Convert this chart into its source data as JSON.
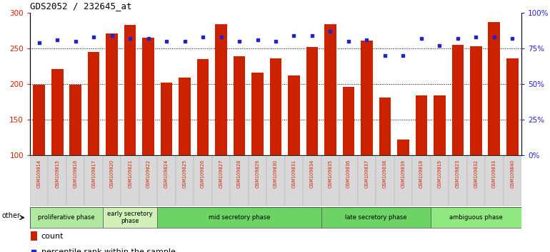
{
  "title": "GDS2052 / 232645_at",
  "samples": [
    "GSM109814",
    "GSM109815",
    "GSM109816",
    "GSM109817",
    "GSM109820",
    "GSM109821",
    "GSM109822",
    "GSM109824",
    "GSM109825",
    "GSM109826",
    "GSM109827",
    "GSM109828",
    "GSM109829",
    "GSM109830",
    "GSM109831",
    "GSM109834",
    "GSM109835",
    "GSM109836",
    "GSM109837",
    "GSM109838",
    "GSM109839",
    "GSM109818",
    "GSM109819",
    "GSM109823",
    "GSM109832",
    "GSM109833",
    "GSM109840"
  ],
  "counts": [
    199,
    221,
    199,
    245,
    271,
    283,
    265,
    202,
    209,
    235,
    284,
    239,
    216,
    236,
    212,
    252,
    284,
    196,
    261,
    181,
    122,
    184,
    184,
    255,
    253,
    287,
    236
  ],
  "percentiles": [
    79,
    81,
    80,
    83,
    84,
    82,
    82,
    80,
    80,
    83,
    83,
    80,
    81,
    80,
    84,
    84,
    87,
    80,
    81,
    70,
    70,
    82,
    77,
    82,
    83,
    83,
    82
  ],
  "bar_color": "#cc2200",
  "dot_color": "#2222cc",
  "y_min": 100,
  "y_max": 300,
  "yticks_left": [
    100,
    150,
    200,
    250,
    300
  ],
  "pct_min": 0,
  "pct_max": 100,
  "yticks_right": [
    0,
    25,
    50,
    75,
    100
  ],
  "phase_groups": [
    {
      "label": "proliferative phase",
      "count": 4,
      "color": "#b0e8a0"
    },
    {
      "label": "early secretory\nphase",
      "count": 3,
      "color": "#d0f0b8"
    },
    {
      "label": "mid secretory phase",
      "count": 9,
      "color": "#6cd464"
    },
    {
      "label": "late secretory phase",
      "count": 6,
      "color": "#6cd464"
    },
    {
      "label": "ambiguous phase",
      "count": 5,
      "color": "#90e880"
    }
  ],
  "other_label": "other",
  "legend_count_label": "count",
  "legend_percentile_label": "percentile rank within the sample",
  "tick_bg": "#d8d8d8",
  "plot_bg": "#ffffff",
  "grid_color": "black",
  "grid_linestyle": ":"
}
